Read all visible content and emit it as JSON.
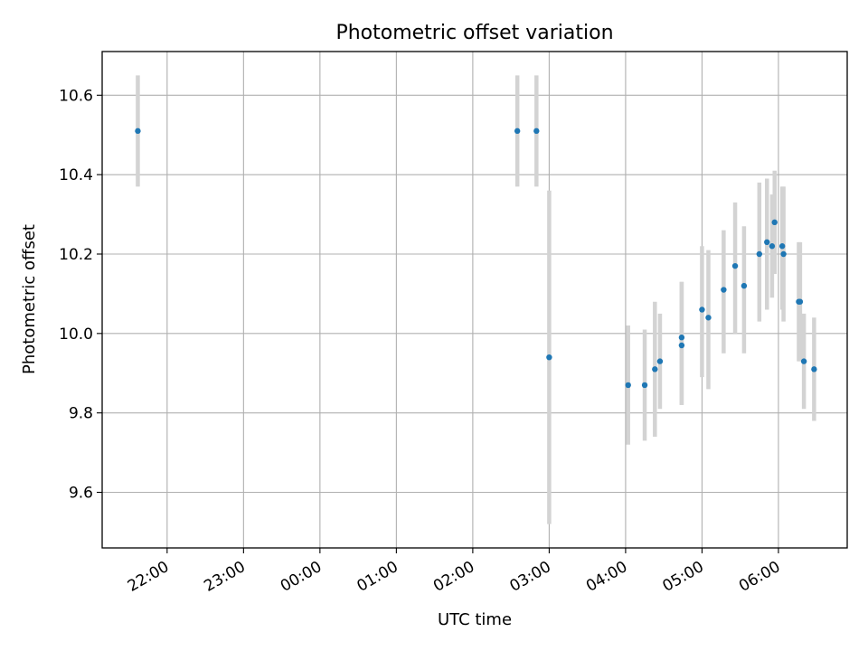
{
  "chart_data": {
    "type": "scatter",
    "title": "Photometric offset variation",
    "xlabel": "UTC time",
    "ylabel": "Photometric offset",
    "grid": true,
    "xlim": [
      "21:09",
      "06:54"
    ],
    "ylim": [
      9.46,
      10.71
    ],
    "x_ticks": [
      "22:00",
      "23:00",
      "00:00",
      "01:00",
      "02:00",
      "03:00",
      "04:00",
      "05:00",
      "06:00"
    ],
    "y_ticks": [
      "9.6",
      "9.8",
      "10.0",
      "10.2",
      "10.4",
      "10.6"
    ],
    "marker_color": "#1f77b4",
    "errorbar_color": "#d3d3d3",
    "points": [
      {
        "x": "21:37",
        "y": 10.51,
        "yerr_low": 10.37,
        "yerr_high": 10.65
      },
      {
        "x": "02:35",
        "y": 10.51,
        "yerr_low": 10.37,
        "yerr_high": 10.65
      },
      {
        "x": "02:50",
        "y": 10.51,
        "yerr_low": 10.37,
        "yerr_high": 10.65
      },
      {
        "x": "03:00",
        "y": 9.94,
        "yerr_low": 9.52,
        "yerr_high": 10.36
      },
      {
        "x": "04:02",
        "y": 9.87,
        "yerr_low": 9.72,
        "yerr_high": 10.02
      },
      {
        "x": "04:15",
        "y": 9.87,
        "yerr_low": 9.73,
        "yerr_high": 10.01
      },
      {
        "x": "04:23",
        "y": 9.91,
        "yerr_low": 9.74,
        "yerr_high": 10.08
      },
      {
        "x": "04:27",
        "y": 9.93,
        "yerr_low": 9.81,
        "yerr_high": 10.05
      },
      {
        "x": "04:44",
        "y": 9.99,
        "yerr_low": 9.82,
        "yerr_high": 10.13
      },
      {
        "x": "04:44",
        "y": 9.97,
        "yerr_low": 9.82,
        "yerr_high": 10.13
      },
      {
        "x": "05:00",
        "y": 10.06,
        "yerr_low": 9.89,
        "yerr_high": 10.22
      },
      {
        "x": "05:05",
        "y": 10.04,
        "yerr_low": 9.86,
        "yerr_high": 10.21
      },
      {
        "x": "05:17",
        "y": 10.11,
        "yerr_low": 9.95,
        "yerr_high": 10.26
      },
      {
        "x": "05:26",
        "y": 10.17,
        "yerr_low": 10.0,
        "yerr_high": 10.33
      },
      {
        "x": "05:33",
        "y": 10.12,
        "yerr_low": 9.95,
        "yerr_high": 10.27
      },
      {
        "x": "05:45",
        "y": 10.2,
        "yerr_low": 10.03,
        "yerr_high": 10.38
      },
      {
        "x": "05:51",
        "y": 10.23,
        "yerr_low": 10.06,
        "yerr_high": 10.39
      },
      {
        "x": "05:55",
        "y": 10.22,
        "yerr_low": 10.09,
        "yerr_high": 10.35
      },
      {
        "x": "05:57",
        "y": 10.28,
        "yerr_low": 10.15,
        "yerr_high": 10.41
      },
      {
        "x": "06:03",
        "y": 10.22,
        "yerr_low": 10.06,
        "yerr_high": 10.37
      },
      {
        "x": "06:04",
        "y": 10.2,
        "yerr_low": 10.03,
        "yerr_high": 10.37
      },
      {
        "x": "06:16",
        "y": 10.08,
        "yerr_low": 9.93,
        "yerr_high": 10.23
      },
      {
        "x": "06:17",
        "y": 10.08,
        "yerr_low": 9.93,
        "yerr_high": 10.23
      },
      {
        "x": "06:20",
        "y": 9.93,
        "yerr_low": 9.81,
        "yerr_high": 10.05
      },
      {
        "x": "06:28",
        "y": 9.91,
        "yerr_low": 9.78,
        "yerr_high": 10.04
      }
    ]
  }
}
